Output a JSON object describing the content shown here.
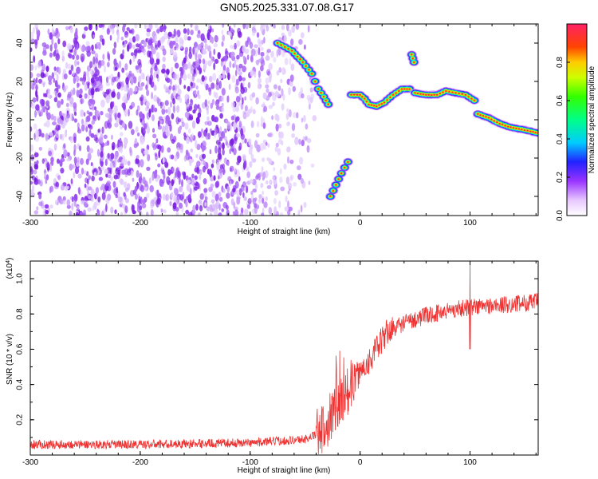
{
  "title": "GN05.2025.331.07.08.G17",
  "chart_data": [
    {
      "type": "heatmap",
      "xlabel": "Height of straight line (km)",
      "ylabel": "Frequency (Hz)",
      "xlim": [
        -300,
        162
      ],
      "ylim": [
        -50,
        50
      ],
      "xticks": [
        "-300",
        "-200",
        "-100",
        "0",
        "100"
      ],
      "yticks": [
        "-40",
        "-20",
        "0",
        "20",
        "40"
      ],
      "noise_region": {
        "x_range": [
          -300,
          -65
        ],
        "y_range": [
          -50,
          50
        ]
      },
      "ridges": [
        {
          "points": [
            [
              -75,
              40
            ],
            [
              -62,
              36
            ],
            [
              -52,
              30
            ],
            [
              -44,
              24
            ],
            [
              -38,
              16
            ],
            [
              -33,
              12
            ],
            [
              -29,
              8
            ]
          ]
        },
        {
          "points": [
            [
              -27,
              -40
            ],
            [
              -22,
              -34
            ],
            [
              -17,
              -28
            ],
            [
              -11,
              -22
            ]
          ]
        },
        {
          "points": [
            [
              -8,
              13
            ],
            [
              0,
              13
            ],
            [
              4,
              11
            ],
            [
              8,
              8
            ],
            [
              15,
              7
            ],
            [
              22,
              9
            ],
            [
              30,
              13
            ],
            [
              38,
              16
            ],
            [
              45,
              16
            ]
          ]
        },
        {
          "points": [
            [
              47,
              34
            ],
            [
              49,
              30
            ]
          ]
        },
        {
          "points": [
            [
              50,
              14
            ],
            [
              60,
              13
            ],
            [
              70,
              13
            ],
            [
              78,
              15
            ],
            [
              87,
              14
            ],
            [
              96,
              13
            ],
            [
              104,
              10
            ]
          ]
        },
        {
          "points": [
            [
              107,
              3
            ],
            [
              117,
              1
            ],
            [
              127,
              -2
            ],
            [
              137,
              -4
            ],
            [
              147,
              -5
            ],
            [
              155,
              -6
            ],
            [
              162,
              -7
            ]
          ]
        }
      ],
      "colorbar": {
        "label": "Normalized spectral amplitude",
        "ticks": [
          "0.0",
          "0.2",
          "0.4",
          "0.6",
          "0.8"
        ],
        "range": [
          0,
          1
        ]
      }
    },
    {
      "type": "line",
      "xlabel": "Height of straight line (km)",
      "ylabel": "SNR (10 * v/v)",
      "multiplier_base": "(x10",
      "multiplier_exp": "4",
      "multiplier_close": ")",
      "xlim": [
        -300,
        162
      ],
      "ylim": [
        0,
        1.1
      ],
      "xticks": [
        "-300",
        "-200",
        "-100",
        "0",
        "100"
      ],
      "yticks": [
        "0.2",
        "0.4",
        "0.6",
        "0.8",
        "1.0"
      ],
      "color": "#ee3333",
      "trend": [
        [
          -300,
          0.06
        ],
        [
          -200,
          0.06
        ],
        [
          -100,
          0.07
        ],
        [
          -50,
          0.09
        ],
        [
          -35,
          0.13
        ],
        [
          -25,
          0.25
        ],
        [
          -15,
          0.33
        ],
        [
          -5,
          0.43
        ],
        [
          10,
          0.55
        ],
        [
          25,
          0.7
        ],
        [
          40,
          0.75
        ],
        [
          60,
          0.79
        ],
        [
          80,
          0.82
        ],
        [
          100,
          0.84
        ],
        [
          130,
          0.85
        ],
        [
          162,
          0.87
        ]
      ],
      "spike": {
        "x": 100,
        "max": 1.08,
        "min": 0.6
      }
    }
  ],
  "colors": {
    "line": "#ee3333",
    "frame": "#000000",
    "noise": "#7a1ee0"
  }
}
